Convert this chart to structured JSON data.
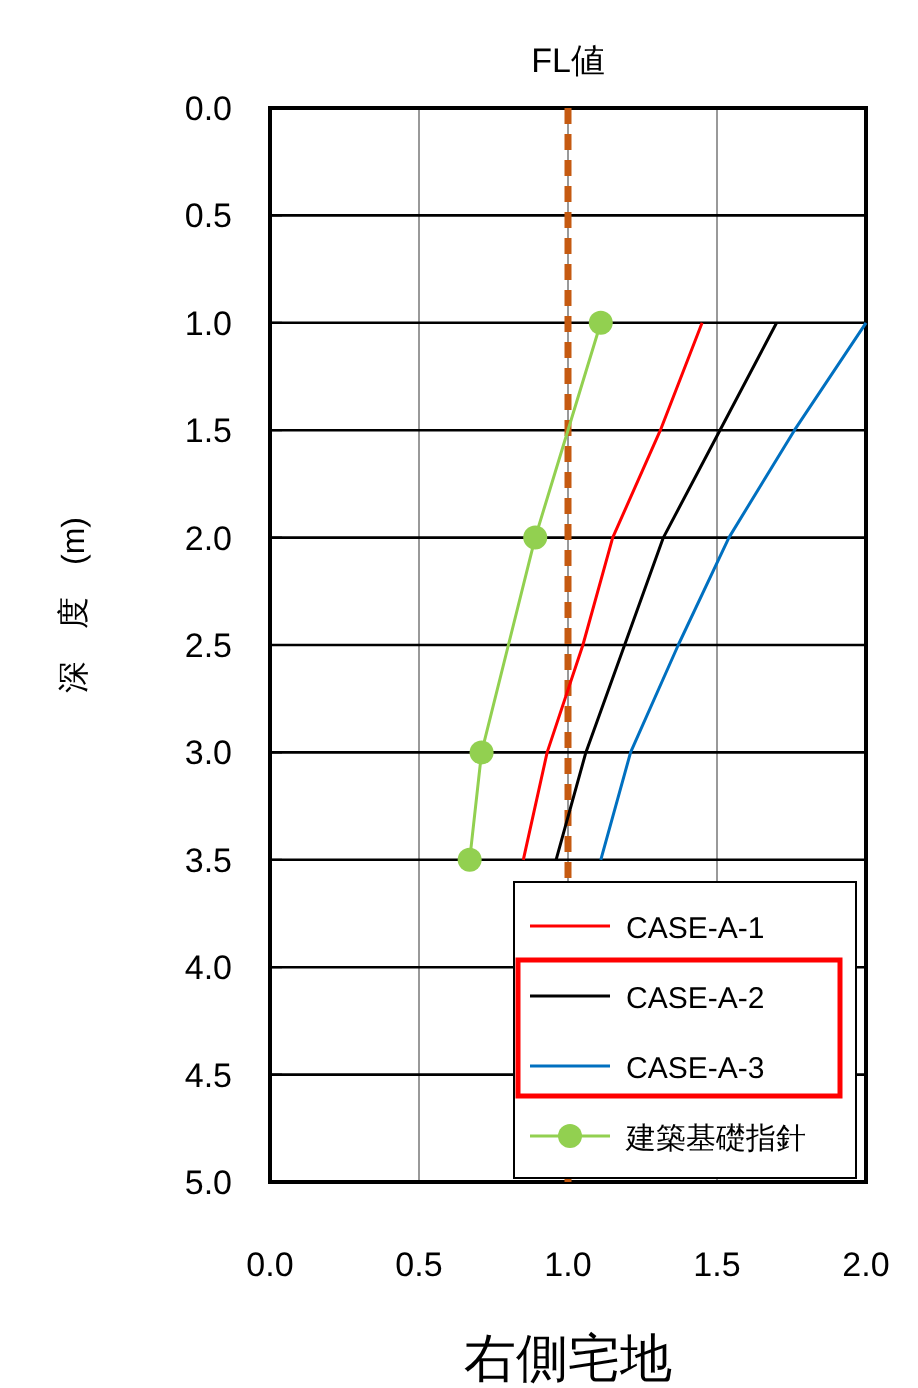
{
  "chart_data": {
    "type": "line",
    "title": "FL値",
    "ylabel": "深　度　(m)",
    "annotations": [
      "右側宅地"
    ],
    "xlim": [
      0,
      2
    ],
    "ylim": [
      5,
      0
    ],
    "xticks": [
      {
        "value": 0,
        "label": "0.0"
      },
      {
        "value": 0.5,
        "label": "0.5"
      },
      {
        "value": 1,
        "label": "1.0"
      },
      {
        "value": 1.5,
        "label": "1.5"
      },
      {
        "value": 2,
        "label": "2.0"
      }
    ],
    "yticks": [
      {
        "value": 0,
        "label": "0.0"
      },
      {
        "value": 0.5,
        "label": "0.5"
      },
      {
        "value": 1,
        "label": "1.0"
      },
      {
        "value": 1.5,
        "label": "1.5"
      },
      {
        "value": 2,
        "label": "2.0"
      },
      {
        "value": 2.5,
        "label": "2.5"
      },
      {
        "value": 3,
        "label": "3.0"
      },
      {
        "value": 3.5,
        "label": "3.5"
      },
      {
        "value": 4,
        "label": "4.0"
      },
      {
        "value": 4.5,
        "label": "4.5"
      },
      {
        "value": 5,
        "label": "5.0"
      }
    ],
    "grid": true,
    "legend": "bottom right",
    "ref_lines": [
      {
        "axis": "x",
        "value": 1,
        "color": "#c55a11",
        "line_style": "dashed"
      }
    ],
    "series": [
      {
        "name": "CASE-A-1",
        "color": "#ff0000",
        "marker": "none",
        "x": [
          1.45,
          1.31,
          1.15,
          1.05,
          0.93,
          0.85
        ],
        "values": [
          1.0,
          1.5,
          2.0,
          2.5,
          3.0,
          3.5
        ]
      },
      {
        "name": "CASE-A-2",
        "color": "#000000",
        "marker": "none",
        "x": [
          1.7,
          1.51,
          1.32,
          1.19,
          1.06,
          0.96
        ],
        "values": [
          1.0,
          1.5,
          2.0,
          2.5,
          3.0,
          3.5
        ]
      },
      {
        "name": "CASE-A-3",
        "color": "#0070c0",
        "marker": "none",
        "x": [
          2.0,
          1.76,
          1.54,
          1.37,
          1.21,
          1.11
        ],
        "values": [
          1.0,
          1.5,
          2.0,
          2.5,
          3.0,
          3.5
        ]
      },
      {
        "name": "建築基礎指針",
        "color": "#92d050",
        "marker": "circle",
        "x": [
          1.11,
          0.89,
          0.71,
          0.67
        ],
        "values": [
          1.0,
          2.0,
          3.0,
          3.5
        ]
      }
    ]
  }
}
